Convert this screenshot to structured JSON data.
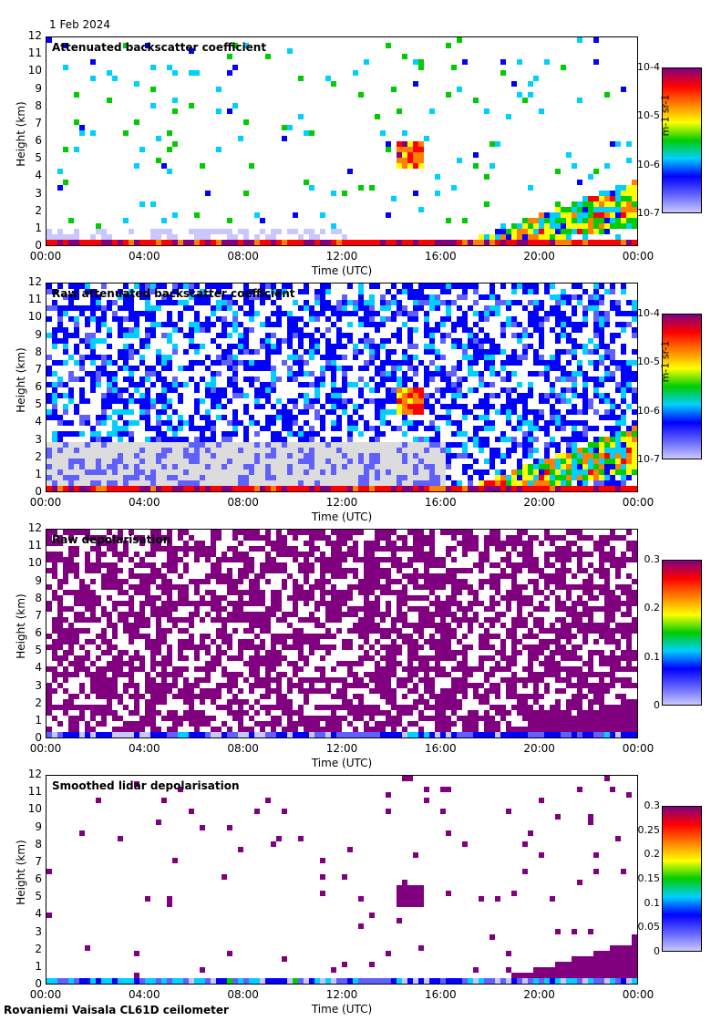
{
  "date_label": "1 Feb 2024",
  "footer": "Rovaniemi Vaisala CL61D ceilometer",
  "chart_data": [
    {
      "type": "heatmap",
      "title": "Attenuated backscatter coefficient",
      "xlabel": "Time (UTC)",
      "ylabel": "Height (km)",
      "xticks": [
        "00:00",
        "04:00",
        "08:00",
        "12:00",
        "16:00",
        "20:00",
        "00:00"
      ],
      "yticks": [
        "0",
        "1",
        "2",
        "3",
        "4",
        "5",
        "6",
        "7",
        "8",
        "9",
        "10",
        "11",
        "12"
      ],
      "ylim": [
        0,
        12
      ],
      "colorbar": {
        "scale": "log",
        "ticks": [
          "10-7",
          "10-6",
          "10-5",
          "10-4"
        ],
        "unit": "m-1 sr-1"
      },
      "features": [
        {
          "name": "boundary layer",
          "start_h": 0,
          "end_h": 24,
          "height_km": [
            0,
            0.6
          ],
          "level": 0.85
        },
        {
          "name": "mid-level cloud",
          "start_h": 14,
          "end_h": 15,
          "height_km": [
            4.8,
            6.2
          ],
          "level": 0.8
        },
        {
          "name": "evening cloud",
          "start_h": 18,
          "end_h": 24,
          "height_km": [
            0.5,
            4
          ],
          "level": 0.8
        }
      ]
    },
    {
      "type": "heatmap",
      "title": "Raw attenuated backscatter coefficient",
      "xlabel": "Time (UTC)",
      "ylabel": "Height (km)",
      "xticks": [
        "00:00",
        "04:00",
        "08:00",
        "12:00",
        "16:00",
        "20:00",
        "00:00"
      ],
      "yticks": [
        "0",
        "1",
        "2",
        "3",
        "4",
        "5",
        "6",
        "7",
        "8",
        "9",
        "10",
        "11",
        "12"
      ],
      "ylim": [
        0,
        12
      ],
      "colorbar": {
        "scale": "log",
        "ticks": [
          "10-7",
          "10-6",
          "10-5",
          "10-4"
        ],
        "unit": "m-1 sr-1"
      }
    },
    {
      "type": "heatmap",
      "title": "Raw depolarisation",
      "xlabel": "Time (UTC)",
      "ylabel": "Height (km)",
      "xticks": [
        "00:00",
        "04:00",
        "08:00",
        "12:00",
        "16:00",
        "20:00",
        "00:00"
      ],
      "yticks": [
        "0",
        "1",
        "2",
        "3",
        "4",
        "5",
        "6",
        "7",
        "8",
        "9",
        "10",
        "11",
        "12"
      ],
      "ylim": [
        0,
        12
      ],
      "colorbar": {
        "scale": "linear",
        "ticks": [
          "0",
          "0.1",
          "0.2",
          "0.3"
        ],
        "range": [
          0,
          0.3
        ]
      }
    },
    {
      "type": "heatmap",
      "title": "Smoothed lidar depolarisation",
      "xlabel": "Time (UTC)",
      "ylabel": "Height (km)",
      "xticks": [
        "00:00",
        "04:00",
        "08:00",
        "12:00",
        "16:00",
        "20:00",
        "00:00"
      ],
      "yticks": [
        "0",
        "1",
        "2",
        "3",
        "4",
        "5",
        "6",
        "7",
        "8",
        "9",
        "10",
        "11",
        "12"
      ],
      "ylim": [
        0,
        12
      ],
      "colorbar": {
        "scale": "linear",
        "ticks": [
          "0",
          "0.05",
          "0.1",
          "0.15",
          "0.2",
          "0.25",
          "0.3"
        ],
        "range": [
          0,
          0.3
        ]
      }
    }
  ],
  "colors": {
    "low": "#c8c8ff",
    "blue": "#0000ff",
    "cyan": "#00e0e0",
    "green": "#00cc00",
    "yellow": "#ffff00",
    "red": "#ff0000",
    "high": "#800080",
    "clear": "#dcdcdc"
  }
}
